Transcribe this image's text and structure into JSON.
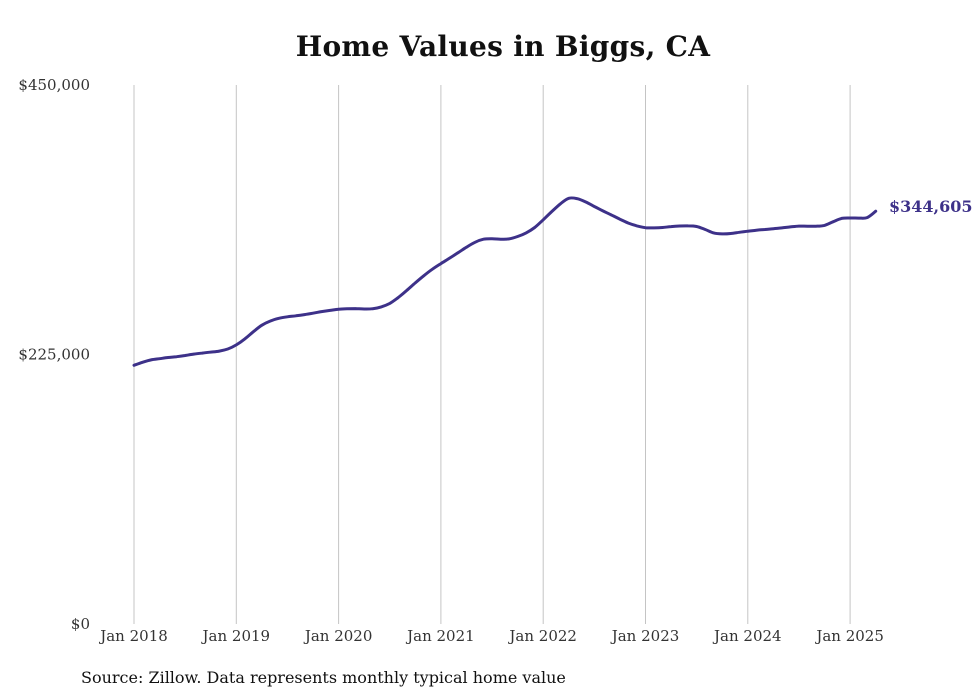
{
  "chart_data": {
    "type": "line",
    "title": "Home Values in Biggs, CA",
    "xlabel": "",
    "ylabel": "",
    "ylim": [
      0,
      450000
    ],
    "y_ticks": [
      {
        "value": 0,
        "label": "$0"
      },
      {
        "value": 225000,
        "label": "$225,000"
      },
      {
        "value": 450000,
        "label": "$450,000"
      }
    ],
    "x_ticks": [
      "Jan 2018",
      "Jan 2019",
      "Jan 2020",
      "Jan 2021",
      "Jan 2022",
      "Jan 2023",
      "Jan 2024",
      "Jan 2025"
    ],
    "grid": "vertical",
    "line_color": "#3d3189",
    "end_label": "$344,605",
    "series": [
      {
        "x": [
          "2018-01",
          "2018-02",
          "2018-03",
          "2018-04",
          "2018-05",
          "2018-06",
          "2018-07",
          "2018-08",
          "2018-09",
          "2018-10",
          "2018-11",
          "2018-12",
          "2019-01",
          "2019-02",
          "2019-03",
          "2019-04",
          "2019-05",
          "2019-06",
          "2019-07",
          "2019-08",
          "2019-09",
          "2019-10",
          "2019-11",
          "2019-12",
          "2020-01",
          "2020-02",
          "2020-03",
          "2020-04",
          "2020-05",
          "2020-06",
          "2020-07",
          "2020-08",
          "2020-09",
          "2020-10",
          "2020-11",
          "2020-12",
          "2021-01",
          "2021-02",
          "2021-03",
          "2021-04",
          "2021-05",
          "2021-06",
          "2021-07",
          "2021-08",
          "2021-09",
          "2021-10",
          "2021-11",
          "2021-12",
          "2022-01",
          "2022-02",
          "2022-03",
          "2022-04",
          "2022-05",
          "2022-06",
          "2022-07",
          "2022-08",
          "2022-09",
          "2022-10",
          "2022-11",
          "2022-12",
          "2023-01",
          "2023-02",
          "2023-03",
          "2023-04",
          "2023-05",
          "2023-06",
          "2023-07",
          "2023-08",
          "2023-09",
          "2023-10",
          "2023-11",
          "2023-12",
          "2024-01",
          "2024-02",
          "2024-03",
          "2024-04",
          "2024-05",
          "2024-06",
          "2024-07",
          "2024-08",
          "2024-09",
          "2024-10",
          "2024-11",
          "2024-12",
          "2025-01",
          "2025-02",
          "2025-03",
          "2025-04"
        ],
        "values": [
          216000,
          218500,
          220500,
          221500,
          222500,
          223200,
          224200,
          225300,
          226200,
          227000,
          227800,
          229600,
          233000,
          238000,
          244000,
          249500,
          253000,
          255200,
          256500,
          257300,
          258300,
          259500,
          260800,
          261800,
          262800,
          263200,
          263300,
          263000,
          263200,
          264700,
          267700,
          272600,
          278500,
          284800,
          290800,
          296200,
          300900,
          305300,
          309900,
          314600,
          318700,
          321300,
          321700,
          321300,
          321500,
          323500,
          326500,
          331000,
          337500,
          344300,
          350700,
          355400,
          355100,
          352300,
          348600,
          344900,
          341500,
          338000,
          334700,
          332400,
          330900,
          330700,
          331000,
          331800,
          332300,
          332400,
          331900,
          329400,
          326500,
          325700,
          326000,
          327000,
          327900,
          328800,
          329400,
          330000,
          330700,
          331500,
          332200,
          332100,
          332100,
          332800,
          335800,
          338600,
          339000,
          338900,
          339300,
          344605
        ]
      }
    ]
  },
  "footer": {
    "source": "Source: Zillow. Data represents monthly typical home value"
  }
}
